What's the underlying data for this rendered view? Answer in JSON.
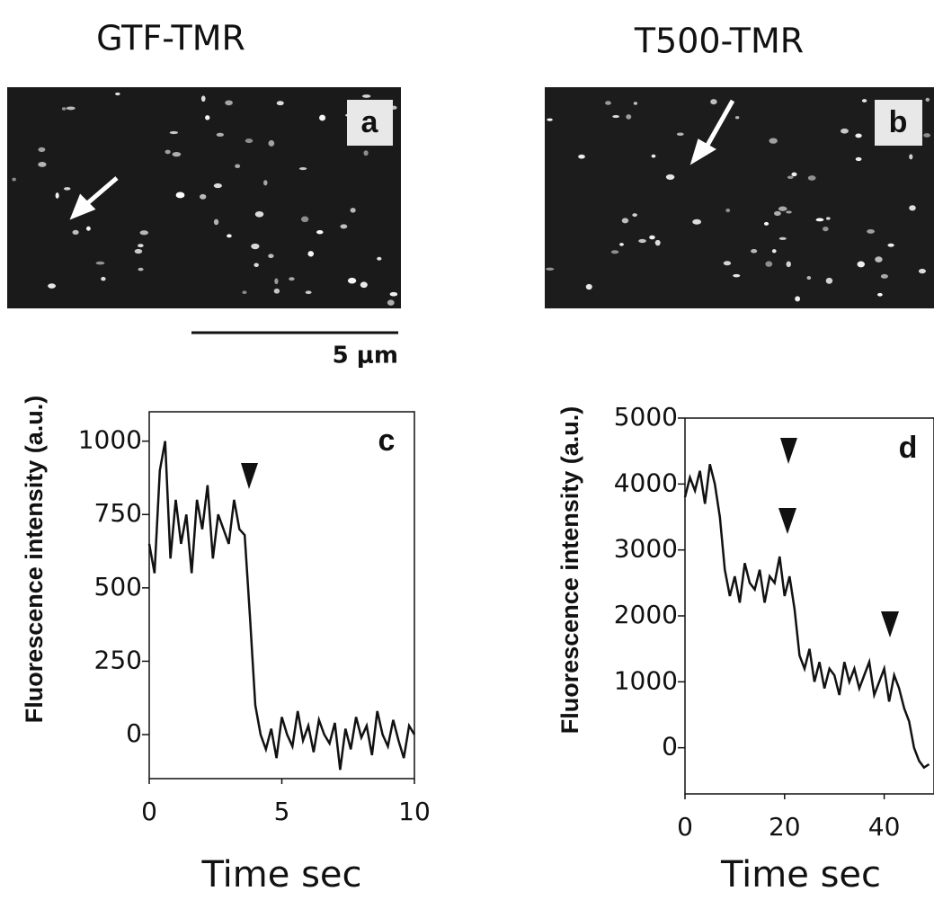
{
  "images": [
    {
      "title": "GTF-TMR",
      "label": "a"
    },
    {
      "title": "T500-TMR",
      "label": "b"
    }
  ],
  "scale_bar": "5 μm",
  "chart_data": [
    {
      "type": "line",
      "panel": "c",
      "xlabel": "Time sec",
      "ylabel": "Fluorescence intensity (a.u.)",
      "xlim": [
        0,
        10
      ],
      "ylim": [
        -150,
        1100
      ],
      "xticks": [
        0,
        5,
        10
      ],
      "yticks": [
        0,
        250,
        500,
        750,
        1000
      ],
      "grid": false,
      "series": [
        {
          "color": "#111111",
          "x": [
            0,
            0.2,
            0.4,
            0.6,
            0.8,
            1.0,
            1.2,
            1.4,
            1.6,
            1.8,
            2.0,
            2.2,
            2.4,
            2.6,
            2.8,
            3.0,
            3.2,
            3.4,
            3.6,
            3.8,
            4.0,
            4.2,
            4.4,
            4.6,
            4.8,
            5.0,
            5.2,
            5.4,
            5.6,
            5.8,
            6.0,
            6.2,
            6.4,
            6.6,
            6.8,
            7.0,
            7.2,
            7.4,
            7.6,
            7.8,
            8.0,
            8.2,
            8.4,
            8.6,
            8.8,
            9.0,
            9.2,
            9.4,
            9.6,
            9.8,
            10.0
          ],
          "values": [
            650,
            550,
            900,
            1000,
            600,
            800,
            650,
            750,
            550,
            800,
            700,
            850,
            600,
            750,
            700,
            650,
            800,
            700,
            680,
            400,
            100,
            0,
            -50,
            20,
            -80,
            60,
            0,
            -40,
            80,
            -20,
            30,
            -60,
            50,
            0,
            -30,
            40,
            -120,
            20,
            -50,
            60,
            -10,
            30,
            -70,
            80,
            0,
            -40,
            50,
            -20,
            -80,
            30,
            0
          ]
        }
      ]
    },
    {
      "type": "line",
      "panel": "d",
      "xlabel": "Time sec",
      "ylabel": "Fluorescence intensity (a.u.)",
      "xlim": [
        0,
        50
      ],
      "ylim": [
        -700,
        5000
      ],
      "xticks": [
        0,
        20,
        40
      ],
      "yticks": [
        0,
        1000,
        2000,
        3000,
        4000,
        5000
      ],
      "grid": false,
      "series": [
        {
          "color": "#111111",
          "x": [
            0,
            1,
            2,
            3,
            4,
            5,
            6,
            7,
            8,
            9,
            10,
            11,
            12,
            13,
            14,
            15,
            16,
            17,
            18,
            19,
            20,
            21,
            22,
            23,
            24,
            25,
            26,
            27,
            28,
            29,
            30,
            31,
            32,
            33,
            34,
            35,
            36,
            37,
            38,
            39,
            40,
            41,
            42,
            43,
            44,
            45,
            46,
            47,
            48,
            49
          ],
          "values": [
            3800,
            4100,
            3900,
            4200,
            3700,
            4300,
            4000,
            3500,
            2700,
            2300,
            2600,
            2200,
            2800,
            2500,
            2400,
            2700,
            2200,
            2600,
            2500,
            2900,
            2300,
            2600,
            2100,
            1400,
            1200,
            1500,
            1000,
            1300,
            900,
            1200,
            1100,
            800,
            1300,
            1000,
            1200,
            900,
            1100,
            1300,
            800,
            1000,
            1200,
            700,
            1100,
            900,
            600,
            400,
            0,
            -200,
            -300,
            -250
          ]
        }
      ]
    }
  ]
}
